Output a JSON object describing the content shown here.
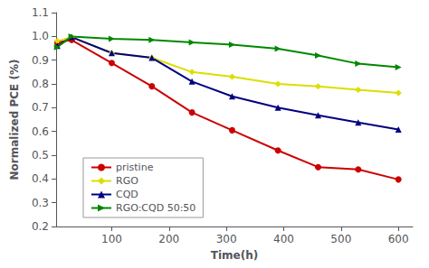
{
  "chart_data": {
    "type": "line",
    "xlabel": "Time(h)",
    "ylabel": "Normalized PCE (%)",
    "x": [
      5,
      30,
      100,
      170,
      240,
      310,
      390,
      460,
      530,
      600
    ],
    "xlim": [
      3,
      625
    ],
    "xticks": [
      100,
      200,
      300,
      400,
      500,
      600
    ],
    "ylim": [
      0.2,
      1.1
    ],
    "yticks": [
      0.2,
      0.3,
      0.4,
      0.5,
      0.6,
      0.7,
      0.8,
      0.9,
      {
        "value": 1.0,
        "label": "1.0"
      },
      1.1
    ],
    "grid": false,
    "legend": "lower left",
    "series": [
      {
        "name": "pristine",
        "color": "#cc0000",
        "marker": "circle",
        "values": [
          0.975,
          0.985,
          0.888,
          0.79,
          0.68,
          0.605,
          0.52,
          0.45,
          0.44,
          0.398
        ]
      },
      {
        "name": "RGO",
        "color": "#dddd00",
        "marker": "diamond",
        "values": [
          0.98,
          0.997,
          0.93,
          0.91,
          0.85,
          0.83,
          0.8,
          0.79,
          0.775,
          0.762
        ]
      },
      {
        "name": "CQD",
        "color": "#000080",
        "marker": "triangle-up",
        "values": [
          0.96,
          0.997,
          0.93,
          0.91,
          0.81,
          0.748,
          0.7,
          0.668,
          0.638,
          0.608
        ]
      },
      {
        "name": "RGO:CQD 50:50",
        "color": "#008800",
        "marker": "triangle-right",
        "values": [
          0.955,
          0.999,
          0.99,
          0.985,
          0.975,
          0.965,
          0.948,
          0.92,
          0.885,
          0.87
        ]
      }
    ]
  }
}
